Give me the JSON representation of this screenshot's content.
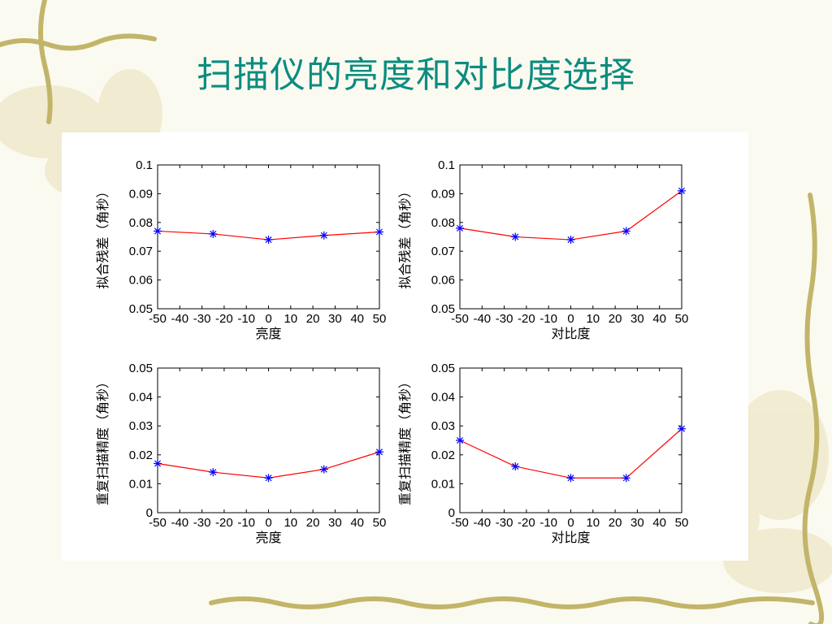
{
  "slide": {
    "title": "扫描仪的亮度和对比度选择"
  },
  "colors": {
    "title": "#0c8c80",
    "line": "#ff0000",
    "marker": "#0000ff",
    "decor": "#c2b56a"
  },
  "chart_data": [
    {
      "type": "line",
      "xlabel": "亮度",
      "ylabel": "拟合残差（角秒）",
      "xlim": [
        -50,
        50
      ],
      "ylim": [
        0.05,
        0.1
      ],
      "xticks": [
        -50,
        -40,
        -30,
        -20,
        -10,
        0,
        10,
        20,
        30,
        40,
        50
      ],
      "yticks": [
        "0.05",
        "0.06",
        "0.07",
        "0.08",
        "0.09",
        "0.1"
      ],
      "x": [
        -50,
        -25,
        0,
        25,
        50
      ],
      "y": [
        0.077,
        0.076,
        0.074,
        0.0755,
        0.0767
      ],
      "marker": "*",
      "grid": false
    },
    {
      "type": "line",
      "xlabel": "对比度",
      "ylabel": "拟合残差（角秒）",
      "xlim": [
        -50,
        50
      ],
      "ylim": [
        0.05,
        0.1
      ],
      "xticks": [
        -50,
        -40,
        -30,
        -20,
        -10,
        0,
        10,
        20,
        30,
        40,
        50
      ],
      "yticks": [
        "0.05",
        "0.06",
        "0.07",
        "0.08",
        "0.09",
        "0.1"
      ],
      "x": [
        -50,
        -25,
        0,
        25,
        50
      ],
      "y": [
        0.078,
        0.075,
        0.074,
        0.077,
        0.091
      ],
      "marker": "*",
      "grid": false
    },
    {
      "type": "line",
      "xlabel": "亮度",
      "ylabel": "重复扫描精度（角秒）",
      "xlim": [
        -50,
        50
      ],
      "ylim": [
        0,
        0.05
      ],
      "xticks": [
        -50,
        -40,
        -30,
        -20,
        -10,
        0,
        10,
        20,
        30,
        40,
        50
      ],
      "yticks": [
        "0",
        "0.01",
        "0.02",
        "0.03",
        "0.04",
        "0.05"
      ],
      "x": [
        -50,
        -25,
        0,
        25,
        50
      ],
      "y": [
        0.017,
        0.014,
        0.012,
        0.015,
        0.021
      ],
      "marker": "*",
      "grid": false
    },
    {
      "type": "line",
      "xlabel": "对比度",
      "ylabel": "重复扫描精度（角秒）",
      "xlim": [
        -50,
        50
      ],
      "ylim": [
        0,
        0.05
      ],
      "xticks": [
        -50,
        -40,
        -30,
        -20,
        -10,
        0,
        10,
        20,
        30,
        40,
        50
      ],
      "yticks": [
        "0",
        "0.01",
        "0.02",
        "0.03",
        "0.04",
        "0.05"
      ],
      "x": [
        -50,
        -25,
        0,
        25,
        50
      ],
      "y": [
        0.025,
        0.016,
        0.012,
        0.012,
        0.029
      ],
      "marker": "*",
      "grid": false
    }
  ]
}
